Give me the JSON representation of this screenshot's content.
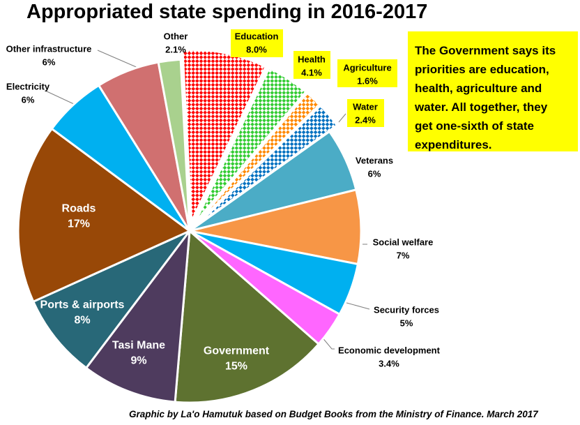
{
  "chart_data": {
    "type": "pie",
    "title": "Appropriated state spending in 2016-2017",
    "start_angle_deg": -3,
    "slices": [
      {
        "name": "Education",
        "value": 8.0,
        "label": "8.0%",
        "color": "#ff0000",
        "pattern": "check",
        "highlight": true,
        "exploded": true
      },
      {
        "name": "Health",
        "value": 4.1,
        "label": "4.1%",
        "color": "#33cc33",
        "pattern": "check",
        "highlight": true,
        "exploded": true
      },
      {
        "name": "Agriculture",
        "value": 1.6,
        "label": "1.6%",
        "color": "#ff8800",
        "pattern": "check",
        "highlight": true,
        "exploded": true
      },
      {
        "name": "Water",
        "value": 2.4,
        "label": "2.4%",
        "color": "#0070c0",
        "pattern": "check",
        "highlight": true,
        "exploded": true
      },
      {
        "name": "Veterans",
        "value": 6,
        "label": "6%",
        "color": "#4bacc6",
        "pattern": "solid",
        "highlight": false,
        "exploded": false
      },
      {
        "name": "Social welfare",
        "value": 7,
        "label": "7%",
        "color": "#f79646",
        "pattern": "solid",
        "highlight": false,
        "exploded": false
      },
      {
        "name": "Security forces",
        "value": 5,
        "label": "5%",
        "color": "#00b0f0",
        "pattern": "solid",
        "highlight": false,
        "exploded": false
      },
      {
        "name": "Economic development",
        "value": 3.4,
        "label": "3.4%",
        "color": "#ff66ff",
        "pattern": "solid",
        "highlight": false,
        "exploded": false
      },
      {
        "name": "Government",
        "value": 15,
        "label": "15%",
        "color": "#5e7230",
        "pattern": "solid",
        "highlight": false,
        "exploded": false
      },
      {
        "name": "Tasi Mane",
        "value": 9,
        "label": "9%",
        "color": "#4e3b5e",
        "pattern": "solid",
        "highlight": false,
        "exploded": false
      },
      {
        "name": "Ports & airports",
        "value": 8,
        "label": "8%",
        "color": "#286878",
        "pattern": "solid",
        "highlight": false,
        "exploded": false
      },
      {
        "name": "Roads",
        "value": 17,
        "label": "17%",
        "color": "#984807",
        "pattern": "solid",
        "highlight": false,
        "exploded": false
      },
      {
        "name": "Electricity",
        "value": 6,
        "label": "6%",
        "color": "#00b0f0",
        "pattern": "solid",
        "highlight": false,
        "exploded": false
      },
      {
        "name": "Other infrastructure",
        "value": 6,
        "label": "6%",
        "color": "#d07070",
        "pattern": "solid",
        "highlight": false,
        "exploded": false
      },
      {
        "name": "Other",
        "value": 2.1,
        "label": "2.1%",
        "color": "#a9d18e",
        "pattern": "solid",
        "highlight": false,
        "exploded": false
      }
    ]
  },
  "annotation": {
    "lines": [
      "The Government says its",
      "priorities are education,",
      "health, agriculture and",
      "water. All together, they",
      "get one-sixth of state",
      "expenditures."
    ]
  },
  "credit": "Graphic by La'o Hamutuk based on Budget Books from the Ministry of Finance. March 2017"
}
